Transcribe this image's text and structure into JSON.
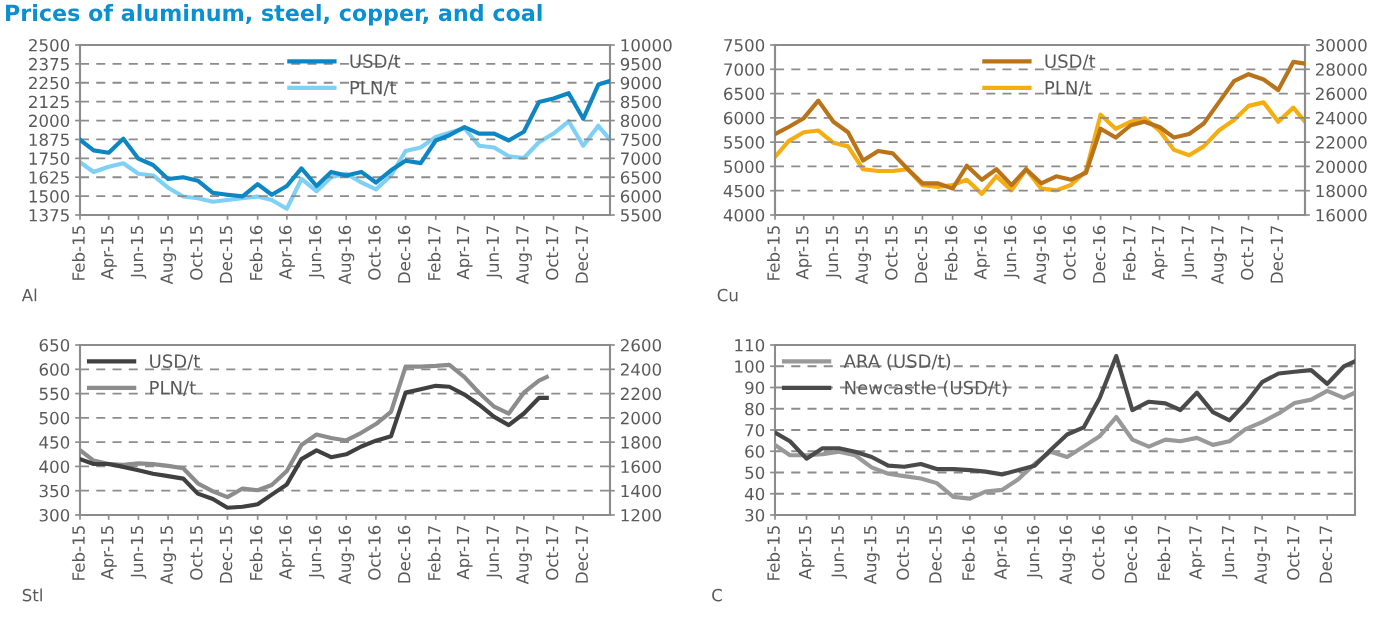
{
  "chart_data": [
    {
      "type": "line",
      "title": "Prices of aluminum, steel, copper, and coal",
      "annotations": [
        "Al"
      ],
      "x": [
        "2015-02",
        "2015-03",
        "2015-04",
        "2015-05",
        "2015-06",
        "2015-07",
        "2015-08",
        "2015-09",
        "2015-10",
        "2015-11",
        "2015-12",
        "2016-01",
        "2016-02",
        "2016-03",
        "2016-04",
        "2016-05",
        "2016-06",
        "2016-07",
        "2016-08",
        "2016-09",
        "2016-10",
        "2016-11",
        "2016-12",
        "2017-01",
        "2017-02",
        "2017-03",
        "2017-04",
        "2017-05",
        "2017-06",
        "2017-07",
        "2017-08",
        "2017-09",
        "2017-10",
        "2017-11",
        "2017-12",
        "2018-01",
        "2018-01-25"
      ],
      "series": [
        {
          "name": "USD/t",
          "color": "#0e86c3",
          "values": [
            1873,
            1803,
            1787,
            1880,
            1748,
            1706,
            1613,
            1625,
            1602,
            1521,
            1509,
            1498,
            1579,
            1509,
            1567,
            1683,
            1567,
            1660,
            1637,
            1660,
            1590,
            1671,
            1734,
            1718,
            1868,
            1903,
            1956,
            1914,
            1914,
            1868,
            1926,
            2123,
            2146,
            2181,
            2012,
            2238,
            2262
          ]
        },
        {
          "name": "PLN/t",
          "color": "#7fd0f5",
          "axis": "y2",
          "values": [
            6898,
            6639,
            6778,
            6870,
            6593,
            6546,
            6222,
            5991,
            5944,
            5852,
            5898,
            5944,
            5991,
            5898,
            5667,
            6454,
            6130,
            6500,
            6593,
            6361,
            6176,
            6546,
            7194,
            7287,
            7565,
            7676,
            7796,
            7333,
            7287,
            7056,
            7009,
            7426,
            7657,
            7981,
            7333,
            7861,
            7491
          ]
        }
      ],
      "xlim": [
        "2015-02-01",
        "2018-01-25"
      ],
      "xticks": [
        {
          "value": "2015-02-01",
          "label": "Feb-15"
        },
        {
          "value": "2015-04-01",
          "label": "Apr-15"
        },
        {
          "value": "2015-06-01",
          "label": "Jun-15"
        },
        {
          "value": "2015-08-01",
          "label": "Aug-15"
        },
        {
          "value": "2015-10-01",
          "label": "Oct-15"
        },
        {
          "value": "2015-12-01",
          "label": "Dec-15"
        },
        {
          "value": "2016-02-01",
          "label": "Feb-16"
        },
        {
          "value": "2016-04-01",
          "label": "Apr-16"
        },
        {
          "value": "2016-06-01",
          "label": "Jun-16"
        },
        {
          "value": "2016-08-01",
          "label": "Aug-16"
        },
        {
          "value": "2016-10-01",
          "label": "Oct-16"
        },
        {
          "value": "2016-12-01",
          "label": "Dec-16"
        },
        {
          "value": "2017-02-01",
          "label": "Feb-17"
        },
        {
          "value": "2017-04-01",
          "label": "Apr-17"
        },
        {
          "value": "2017-06-01",
          "label": "Jun-17"
        },
        {
          "value": "2017-08-01",
          "label": "Aug-17"
        },
        {
          "value": "2017-10-01",
          "label": "Oct-17"
        },
        {
          "value": "2017-12-01",
          "label": "Dec-17"
        }
      ],
      "ylim": [
        1375,
        2500
      ],
      "yticks": [
        1375,
        1500,
        1625,
        1750,
        1875,
        2000,
        2125,
        2250,
        2375,
        2500
      ],
      "y2lim": [
        5500,
        10000
      ],
      "y2ticks": [
        5500,
        6000,
        6500,
        7000,
        7500,
        8000,
        8500,
        9000,
        9500,
        10000
      ],
      "grid": "y",
      "legend": "top",
      "line_style": "solid",
      "marker": "none"
    },
    {
      "type": "line",
      "annotations": [
        "Cu"
      ],
      "x": [
        "2015-02",
        "2015-03",
        "2015-04",
        "2015-05",
        "2015-06",
        "2015-07",
        "2015-08",
        "2015-09",
        "2015-10",
        "2015-11",
        "2015-12",
        "2016-01",
        "2016-02",
        "2016-03",
        "2016-04",
        "2016-05",
        "2016-06",
        "2016-07",
        "2016-08",
        "2016-09",
        "2016-10",
        "2016-11",
        "2016-12",
        "2017-01",
        "2017-02",
        "2017-03",
        "2017-04",
        "2017-05",
        "2017-06",
        "2017-07",
        "2017-08",
        "2017-09",
        "2017-10",
        "2017-11",
        "2017-12",
        "2018-01",
        "2018-01-25"
      ],
      "series": [
        {
          "name": "USD/t",
          "color": "#b8731b",
          "values": [
            5667,
            5812,
            5993,
            6355,
            5920,
            5703,
            5123,
            5319,
            5268,
            4942,
            4652,
            4652,
            4543,
            5014,
            4725,
            4942,
            4616,
            4942,
            4652,
            4797,
            4725,
            4870,
            5776,
            5594,
            5848,
            5920,
            5812,
            5594,
            5667,
            5884,
            6319,
            6754,
            6899,
            6790,
            6573,
            7152,
            7116
          ]
        },
        {
          "name": "PLN/t",
          "color": "#f5ad0f",
          "axis": "y2",
          "values": [
            20783,
            22087,
            22812,
            22957,
            21942,
            21652,
            19768,
            19623,
            19623,
            19768,
            18464,
            18319,
            18464,
            18899,
            17739,
            19188,
            18029,
            19768,
            18174,
            18029,
            18464,
            19623,
            24261,
            23101,
            23681,
            23971,
            22957,
            21362,
            20928,
            21652,
            22957,
            23826,
            24986,
            25275,
            23681,
            24841,
            23681
          ]
        }
      ],
      "xlim": [
        "2015-02-01",
        "2018-01-25"
      ],
      "xticks": [
        {
          "value": "2015-02-01",
          "label": "Feb-15"
        },
        {
          "value": "2015-04-01",
          "label": "Apr-15"
        },
        {
          "value": "2015-06-01",
          "label": "Jun-15"
        },
        {
          "value": "2015-08-01",
          "label": "Aug-15"
        },
        {
          "value": "2015-10-01",
          "label": "Oct-15"
        },
        {
          "value": "2015-12-01",
          "label": "Dec-15"
        },
        {
          "value": "2016-02-01",
          "label": "Feb-16"
        },
        {
          "value": "2016-04-01",
          "label": "Apr-16"
        },
        {
          "value": "2016-06-01",
          "label": "Jun-16"
        },
        {
          "value": "2016-08-01",
          "label": "Aug-16"
        },
        {
          "value": "2016-10-01",
          "label": "Oct-16"
        },
        {
          "value": "2016-12-01",
          "label": "Dec-16"
        },
        {
          "value": "2017-02-01",
          "label": "Feb-17"
        },
        {
          "value": "2017-04-01",
          "label": "Apr-17"
        },
        {
          "value": "2017-06-01",
          "label": "Jun-17"
        },
        {
          "value": "2017-08-01",
          "label": "Aug-17"
        },
        {
          "value": "2017-10-01",
          "label": "Oct-17"
        },
        {
          "value": "2017-12-01",
          "label": "Dec-17"
        }
      ],
      "ylim": [
        4000,
        7500
      ],
      "yticks": [
        4000,
        4500,
        5000,
        5500,
        6000,
        6500,
        7000,
        7500
      ],
      "y2lim": [
        16000,
        30000
      ],
      "y2ticks": [
        16000,
        18000,
        20000,
        22000,
        24000,
        26000,
        28000,
        30000
      ],
      "grid": "y",
      "legend": "top",
      "line_style": "solid",
      "marker": "none"
    },
    {
      "type": "line",
      "annotations": [
        "Stl"
      ],
      "x": [
        "2015-02",
        "2015-03",
        "2015-04",
        "2015-05",
        "2015-06",
        "2015-07",
        "2015-08",
        "2015-09",
        "2015-10",
        "2015-11",
        "2015-12",
        "2016-01",
        "2016-02",
        "2016-03",
        "2016-04",
        "2016-05",
        "2016-06",
        "2016-07",
        "2016-08",
        "2016-09",
        "2016-10",
        "2016-11",
        "2016-12",
        "2017-01",
        "2017-02",
        "2017-03",
        "2017-04",
        "2017-05",
        "2017-06",
        "2017-07",
        "2017-08",
        "2017-09",
        "2017-09-17"
      ],
      "series": [
        {
          "name": "USD/t",
          "color": "#404040",
          "values": [
            415,
            405,
            405,
            399,
            392,
            385,
            380,
            375,
            344,
            333,
            315,
            317,
            322,
            342,
            363,
            415,
            433,
            419,
            425,
            441,
            453,
            462,
            552,
            559,
            566,
            564,
            548,
            527,
            502,
            485,
            509,
            541,
            541
          ]
        },
        {
          "name": "PLN/t",
          "color": "#8c8c8c",
          "axis": "y2",
          "values": [
            1734,
            1648,
            1619,
            1613,
            1625,
            1619,
            1605,
            1585,
            1461,
            1395,
            1347,
            1418,
            1404,
            1447,
            1562,
            1777,
            1863,
            1834,
            1814,
            1877,
            1949,
            2049,
            2422,
            2422,
            2428,
            2436,
            2336,
            2207,
            2092,
            2035,
            2207,
            2307,
            2336
          ]
        }
      ],
      "xlim": [
        "2015-02-01",
        "2018-01-25"
      ],
      "xticks": [
        {
          "value": "2015-02-01",
          "label": "Feb-15"
        },
        {
          "value": "2015-04-01",
          "label": "Apr-15"
        },
        {
          "value": "2015-06-01",
          "label": "Jun-15"
        },
        {
          "value": "2015-08-01",
          "label": "Aug-15"
        },
        {
          "value": "2015-10-01",
          "label": "Oct-15"
        },
        {
          "value": "2015-12-01",
          "label": "Dec-15"
        },
        {
          "value": "2016-02-01",
          "label": "Feb-16"
        },
        {
          "value": "2016-04-01",
          "label": "Apr-16"
        },
        {
          "value": "2016-06-01",
          "label": "Jun-16"
        },
        {
          "value": "2016-08-01",
          "label": "Aug-16"
        },
        {
          "value": "2016-10-01",
          "label": "Oct-16"
        },
        {
          "value": "2016-12-01",
          "label": "Dec-16"
        },
        {
          "value": "2017-02-01",
          "label": "Feb-17"
        },
        {
          "value": "2017-04-01",
          "label": "Apr-17"
        },
        {
          "value": "2017-06-01",
          "label": "Jun-17"
        },
        {
          "value": "2017-08-01",
          "label": "Aug-17"
        },
        {
          "value": "2017-10-01",
          "label": "Oct-17"
        },
        {
          "value": "2017-12-01",
          "label": "Dec-17"
        }
      ],
      "ylim": [
        300,
        650
      ],
      "yticks": [
        300,
        350,
        400,
        450,
        500,
        550,
        600,
        650
      ],
      "y2lim": [
        1200,
        2600
      ],
      "y2ticks": [
        1200,
        1400,
        1600,
        1800,
        2000,
        2200,
        2400,
        2600
      ],
      "grid": "y",
      "legend": "top left",
      "line_style": "solid",
      "marker": "none"
    },
    {
      "type": "line",
      "annotations": [
        "C"
      ],
      "x": [
        "2015-02",
        "2015-03",
        "2015-04",
        "2015-05",
        "2015-06",
        "2015-07",
        "2015-08",
        "2015-09",
        "2015-10",
        "2015-11",
        "2015-12",
        "2016-01",
        "2016-02",
        "2016-03",
        "2016-04",
        "2016-05",
        "2016-06",
        "2016-07",
        "2016-08",
        "2016-09",
        "2016-10",
        "2016-11",
        "2016-12",
        "2017-01",
        "2017-02",
        "2017-03",
        "2017-04",
        "2017-05",
        "2017-06",
        "2017-07",
        "2017-08",
        "2017-09",
        "2017-10",
        "2017-11",
        "2017-12",
        "2018-01",
        "2018-01-22"
      ],
      "series": [
        {
          "name": "ARA (USD/t)",
          "color": "#999999",
          "values": [
            63.0,
            58.1,
            58.1,
            58.6,
            59.8,
            58.1,
            52.4,
            49.4,
            48.3,
            47.2,
            45.0,
            38.5,
            37.7,
            41.0,
            41.8,
            46.7,
            54.0,
            59.8,
            57.3,
            62.2,
            67.1,
            76.1,
            65.5,
            62.2,
            65.5,
            64.7,
            66.3,
            63.0,
            64.7,
            70.4,
            73.7,
            77.8,
            82.7,
            84.3,
            88.4,
            85.1,
            87.6
          ]
        },
        {
          "name": "Newcastle (USD/t)",
          "color": "#4a4a4a",
          "values": [
            68.8,
            64.7,
            56.5,
            61.4,
            61.4,
            59.8,
            57.3,
            53.2,
            52.7,
            54.0,
            51.6,
            51.6,
            51.1,
            50.4,
            49.1,
            51.1,
            53.2,
            60.6,
            67.9,
            71.2,
            85.1,
            104.8,
            79.4,
            83.3,
            82.5,
            79.4,
            87.6,
            78.4,
            74.5,
            82.5,
            92.5,
            96.6,
            97.4,
            98.2,
            91.7,
            99.9,
            102.3
          ]
        }
      ],
      "xlim": [
        "2015-02-01",
        "2018-01-22"
      ],
      "xticks": [
        {
          "value": "2015-02-01",
          "label": "Feb-15"
        },
        {
          "value": "2015-04-01",
          "label": "Apr-15"
        },
        {
          "value": "2015-06-01",
          "label": "Jun-15"
        },
        {
          "value": "2015-08-01",
          "label": "Aug-15"
        },
        {
          "value": "2015-10-01",
          "label": "Oct-15"
        },
        {
          "value": "2015-12-01",
          "label": "Dec-15"
        },
        {
          "value": "2016-02-01",
          "label": "Feb-16"
        },
        {
          "value": "2016-04-01",
          "label": "Apr-16"
        },
        {
          "value": "2016-06-01",
          "label": "Jun-16"
        },
        {
          "value": "2016-08-01",
          "label": "Aug-16"
        },
        {
          "value": "2016-10-01",
          "label": "Oct-16"
        },
        {
          "value": "2016-12-01",
          "label": "Dec-16"
        },
        {
          "value": "2017-02-01",
          "label": "Feb-17"
        },
        {
          "value": "2017-04-01",
          "label": "Apr-17"
        },
        {
          "value": "2017-06-01",
          "label": "Jun-17"
        },
        {
          "value": "2017-08-01",
          "label": "Aug-17"
        },
        {
          "value": "2017-10-01",
          "label": "Oct-17"
        },
        {
          "value": "2017-12-01",
          "label": "Dec-17"
        }
      ],
      "ylim": [
        30,
        110
      ],
      "yticks": [
        30,
        40,
        50,
        60,
        70,
        80,
        90,
        100,
        110
      ],
      "grid": "y",
      "legend": "top left",
      "line_style": "solid",
      "marker": "none"
    }
  ]
}
